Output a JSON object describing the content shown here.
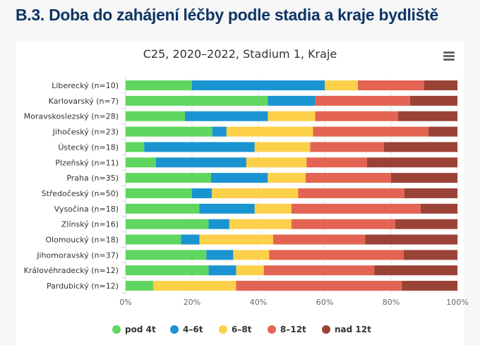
{
  "page_title": "B.3. Doba do zahájení léčby podle stadia a kraje bydliště",
  "menu_icon": "hamburger-menu-icon",
  "chart_data": {
    "type": "bar",
    "orientation": "horizontal",
    "stacking": "percent",
    "title": "C25, 2020–2022, Stadium 1, Kraje",
    "xlabel": "",
    "ylabel": "",
    "xlim": [
      0,
      100
    ],
    "x_ticks": [
      "0%",
      "20%",
      "40%",
      "60%",
      "80%",
      "100%"
    ],
    "grid": true,
    "legend_position": "bottom",
    "categories": [
      "Liberecký (n=10)",
      "Karlovarský (n=7)",
      "Moravskoslezský (n=28)",
      "Jihočeský (n=23)",
      "Ústecký (n=18)",
      "Plzeňský (n=11)",
      "Praha (n=35)",
      "Středočeský (n=50)",
      "Vysočina (n=18)",
      "Zlínský (n=16)",
      "Olomoucký (n=18)",
      "Jihomoravský (n=37)",
      "Královéhradecký (n=12)",
      "Pardubický (n=12)"
    ],
    "series": [
      {
        "name": "pod 4t",
        "color": "#5fd65f",
        "values": [
          20,
          42.9,
          17.9,
          26.1,
          5.6,
          9.1,
          25.7,
          20,
          22.2,
          25,
          16.7,
          24.3,
          25,
          8.3
        ]
      },
      {
        "name": "4–6t",
        "color": "#1a94d1",
        "values": [
          40,
          14.3,
          25,
          4.3,
          33.3,
          27.3,
          17.1,
          6,
          16.7,
          6.25,
          5.6,
          8.1,
          8.3,
          0
        ]
      },
      {
        "name": "6–8t",
        "color": "#fdd04a",
        "values": [
          10,
          0,
          14.3,
          26.1,
          16.7,
          18.2,
          11.4,
          26,
          11.1,
          18.75,
          22.2,
          10.8,
          8.3,
          25
        ]
      },
      {
        "name": "8–12t",
        "color": "#e36452",
        "values": [
          20,
          28.6,
          25,
          34.8,
          22.2,
          18.2,
          25.7,
          32,
          38.9,
          31.25,
          27.8,
          40.5,
          33.3,
          50
        ]
      },
      {
        "name": "nad 12t",
        "color": "#9b4237",
        "values": [
          10,
          14.3,
          17.9,
          8.7,
          22.2,
          27.3,
          20,
          16,
          11.1,
          18.75,
          27.8,
          16.2,
          25,
          16.7
        ]
      }
    ]
  }
}
